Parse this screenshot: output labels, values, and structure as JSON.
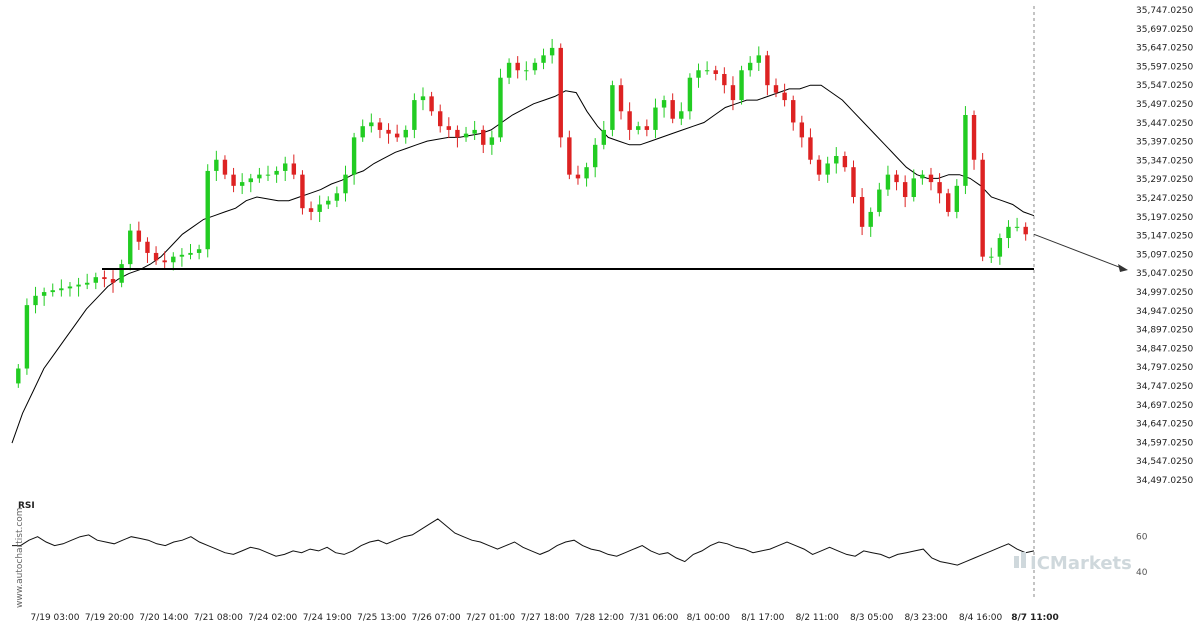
{
  "brand": {
    "side_watermark": "www.autochartist.com",
    "logo_text": "ICMarkets"
  },
  "rsi_panel": {
    "title": "RSI",
    "levels": [
      60,
      40
    ]
  },
  "chart_data": {
    "type": "candlestick",
    "y_ticks": [
      "35,747.0250",
      "35,697.0250",
      "35,647.0250",
      "35,597.0250",
      "35,547.0250",
      "35,497.0250",
      "35,447.0250",
      "35,397.0250",
      "35,347.0250",
      "35,297.0250",
      "35,247.0250",
      "35,197.0250",
      "35,147.0250",
      "35,097.0250",
      "35,047.0250",
      "34,997.0250",
      "34,947.0250",
      "34,897.0250",
      "34,847.0250",
      "34,797.0250",
      "34,747.0250",
      "34,697.0250",
      "34,647.0250",
      "34,597.0250",
      "34,547.0250",
      "34,497.0250"
    ],
    "x_ticks": [
      "7/19 03:00",
      "7/19 20:00",
      "7/20 14:00",
      "7/21 08:00",
      "7/24 02:00",
      "7/24 19:00",
      "7/25 13:00",
      "7/26 07:00",
      "7/27 01:00",
      "7/27 18:00",
      "7/28 12:00",
      "7/31 06:00",
      "8/1 00:00",
      "8/1 17:00",
      "8/2 11:00",
      "8/3 05:00",
      "8/3 23:00",
      "8/4 16:00",
      "8/7 11:00"
    ],
    "last_x_label": "8/7 11:00",
    "ylim": [
      34497.025,
      35747.025
    ],
    "support_level": 35047.025,
    "projection": {
      "to": 35047.025
    },
    "colors": {
      "up": "#22cc22",
      "down": "#dd2222",
      "line": "#000000"
    },
    "series": [
      {
        "name": "Price",
        "close": [
          34780,
          34950,
          34975,
          34985,
          34990,
          34995,
          35000,
          35005,
          35010,
          35025,
          35020,
          35010,
          35060,
          35150,
          35120,
          35090,
          35070,
          35065,
          35080,
          35085,
          35090,
          35100,
          35310,
          35340,
          35300,
          35270,
          35280,
          35290,
          35300,
          35300,
          35310,
          35330,
          35300,
          35210,
          35200,
          35220,
          35230,
          35250,
          35300,
          35400,
          35430,
          35440,
          35420,
          35410,
          35400,
          35420,
          35500,
          35510,
          35470,
          35430,
          35420,
          35400,
          35410,
          35420,
          35380,
          35400,
          35560,
          35600,
          35580,
          35580,
          35600,
          35620,
          35640,
          35400,
          35300,
          35290,
          35320,
          35380,
          35420,
          35540,
          35470,
          35420,
          35430,
          35420,
          35480,
          35500,
          35450,
          35470,
          35560,
          35580,
          35580,
          35570,
          35540,
          35500,
          35580,
          35600,
          35620,
          35540,
          35520,
          35500,
          35440,
          35400,
          35340,
          35300,
          35330,
          35350,
          35320,
          35240,
          35160,
          35200,
          35260,
          35300,
          35280,
          35240,
          35290,
          35300,
          35280,
          35250,
          35200,
          35270,
          35460,
          35340,
          35080,
          35080,
          35130,
          35160,
          35160,
          35140
        ]
      },
      {
        "name": "MA",
        "values": [
          34580,
          34660,
          34720,
          34780,
          34820,
          34860,
          34900,
          34940,
          34970,
          35000,
          35020,
          35035,
          35045,
          35060,
          35080,
          35110,
          35140,
          35160,
          35180,
          35190,
          35200,
          35210,
          35230,
          35240,
          35235,
          35230,
          35230,
          35240,
          35250,
          35260,
          35275,
          35285,
          35300,
          35310,
          35330,
          35345,
          35360,
          35370,
          35380,
          35390,
          35395,
          35400,
          35400,
          35405,
          35410,
          35420,
          35440,
          35460,
          35475,
          35490,
          35500,
          35510,
          35525,
          35520,
          35470,
          35430,
          35400,
          35390,
          35380,
          35380,
          35390,
          35400,
          35410,
          35420,
          35430,
          35440,
          35460,
          35480,
          35490,
          35500,
          35500,
          35510,
          35520,
          35530,
          35530,
          35540,
          35540,
          35520,
          35500,
          35470,
          35440,
          35410,
          35380,
          35350,
          35320,
          35300,
          35290,
          35290,
          35300,
          35300,
          35290,
          35270,
          35240,
          35230,
          35220,
          35200,
          35190
        ]
      },
      {
        "name": "RSI",
        "values": [
          55,
          55,
          58,
          60,
          57,
          55,
          56,
          58,
          60,
          61,
          58,
          57,
          56,
          58,
          60,
          59,
          58,
          56,
          55,
          57,
          58,
          60,
          57,
          55,
          53,
          51,
          50,
          52,
          54,
          53,
          51,
          49,
          50,
          52,
          51,
          53,
          52,
          54,
          51,
          50,
          52,
          55,
          57,
          58,
          56,
          58,
          60,
          61,
          64,
          67,
          70,
          66,
          62,
          60,
          58,
          57,
          55,
          53,
          55,
          57,
          54,
          52,
          50,
          52,
          55,
          57,
          58,
          55,
          53,
          52,
          50,
          49,
          51,
          53,
          55,
          52,
          50,
          51,
          48,
          46,
          50,
          52,
          55,
          57,
          56,
          54,
          53,
          51,
          52,
          53,
          55,
          57,
          55,
          53,
          50,
          52,
          54,
          52,
          50,
          49,
          52,
          51,
          50,
          48,
          50,
          51,
          52,
          53,
          48,
          46,
          45,
          44,
          46,
          48,
          50,
          52,
          54,
          56,
          53,
          51,
          52
        ]
      }
    ]
  }
}
